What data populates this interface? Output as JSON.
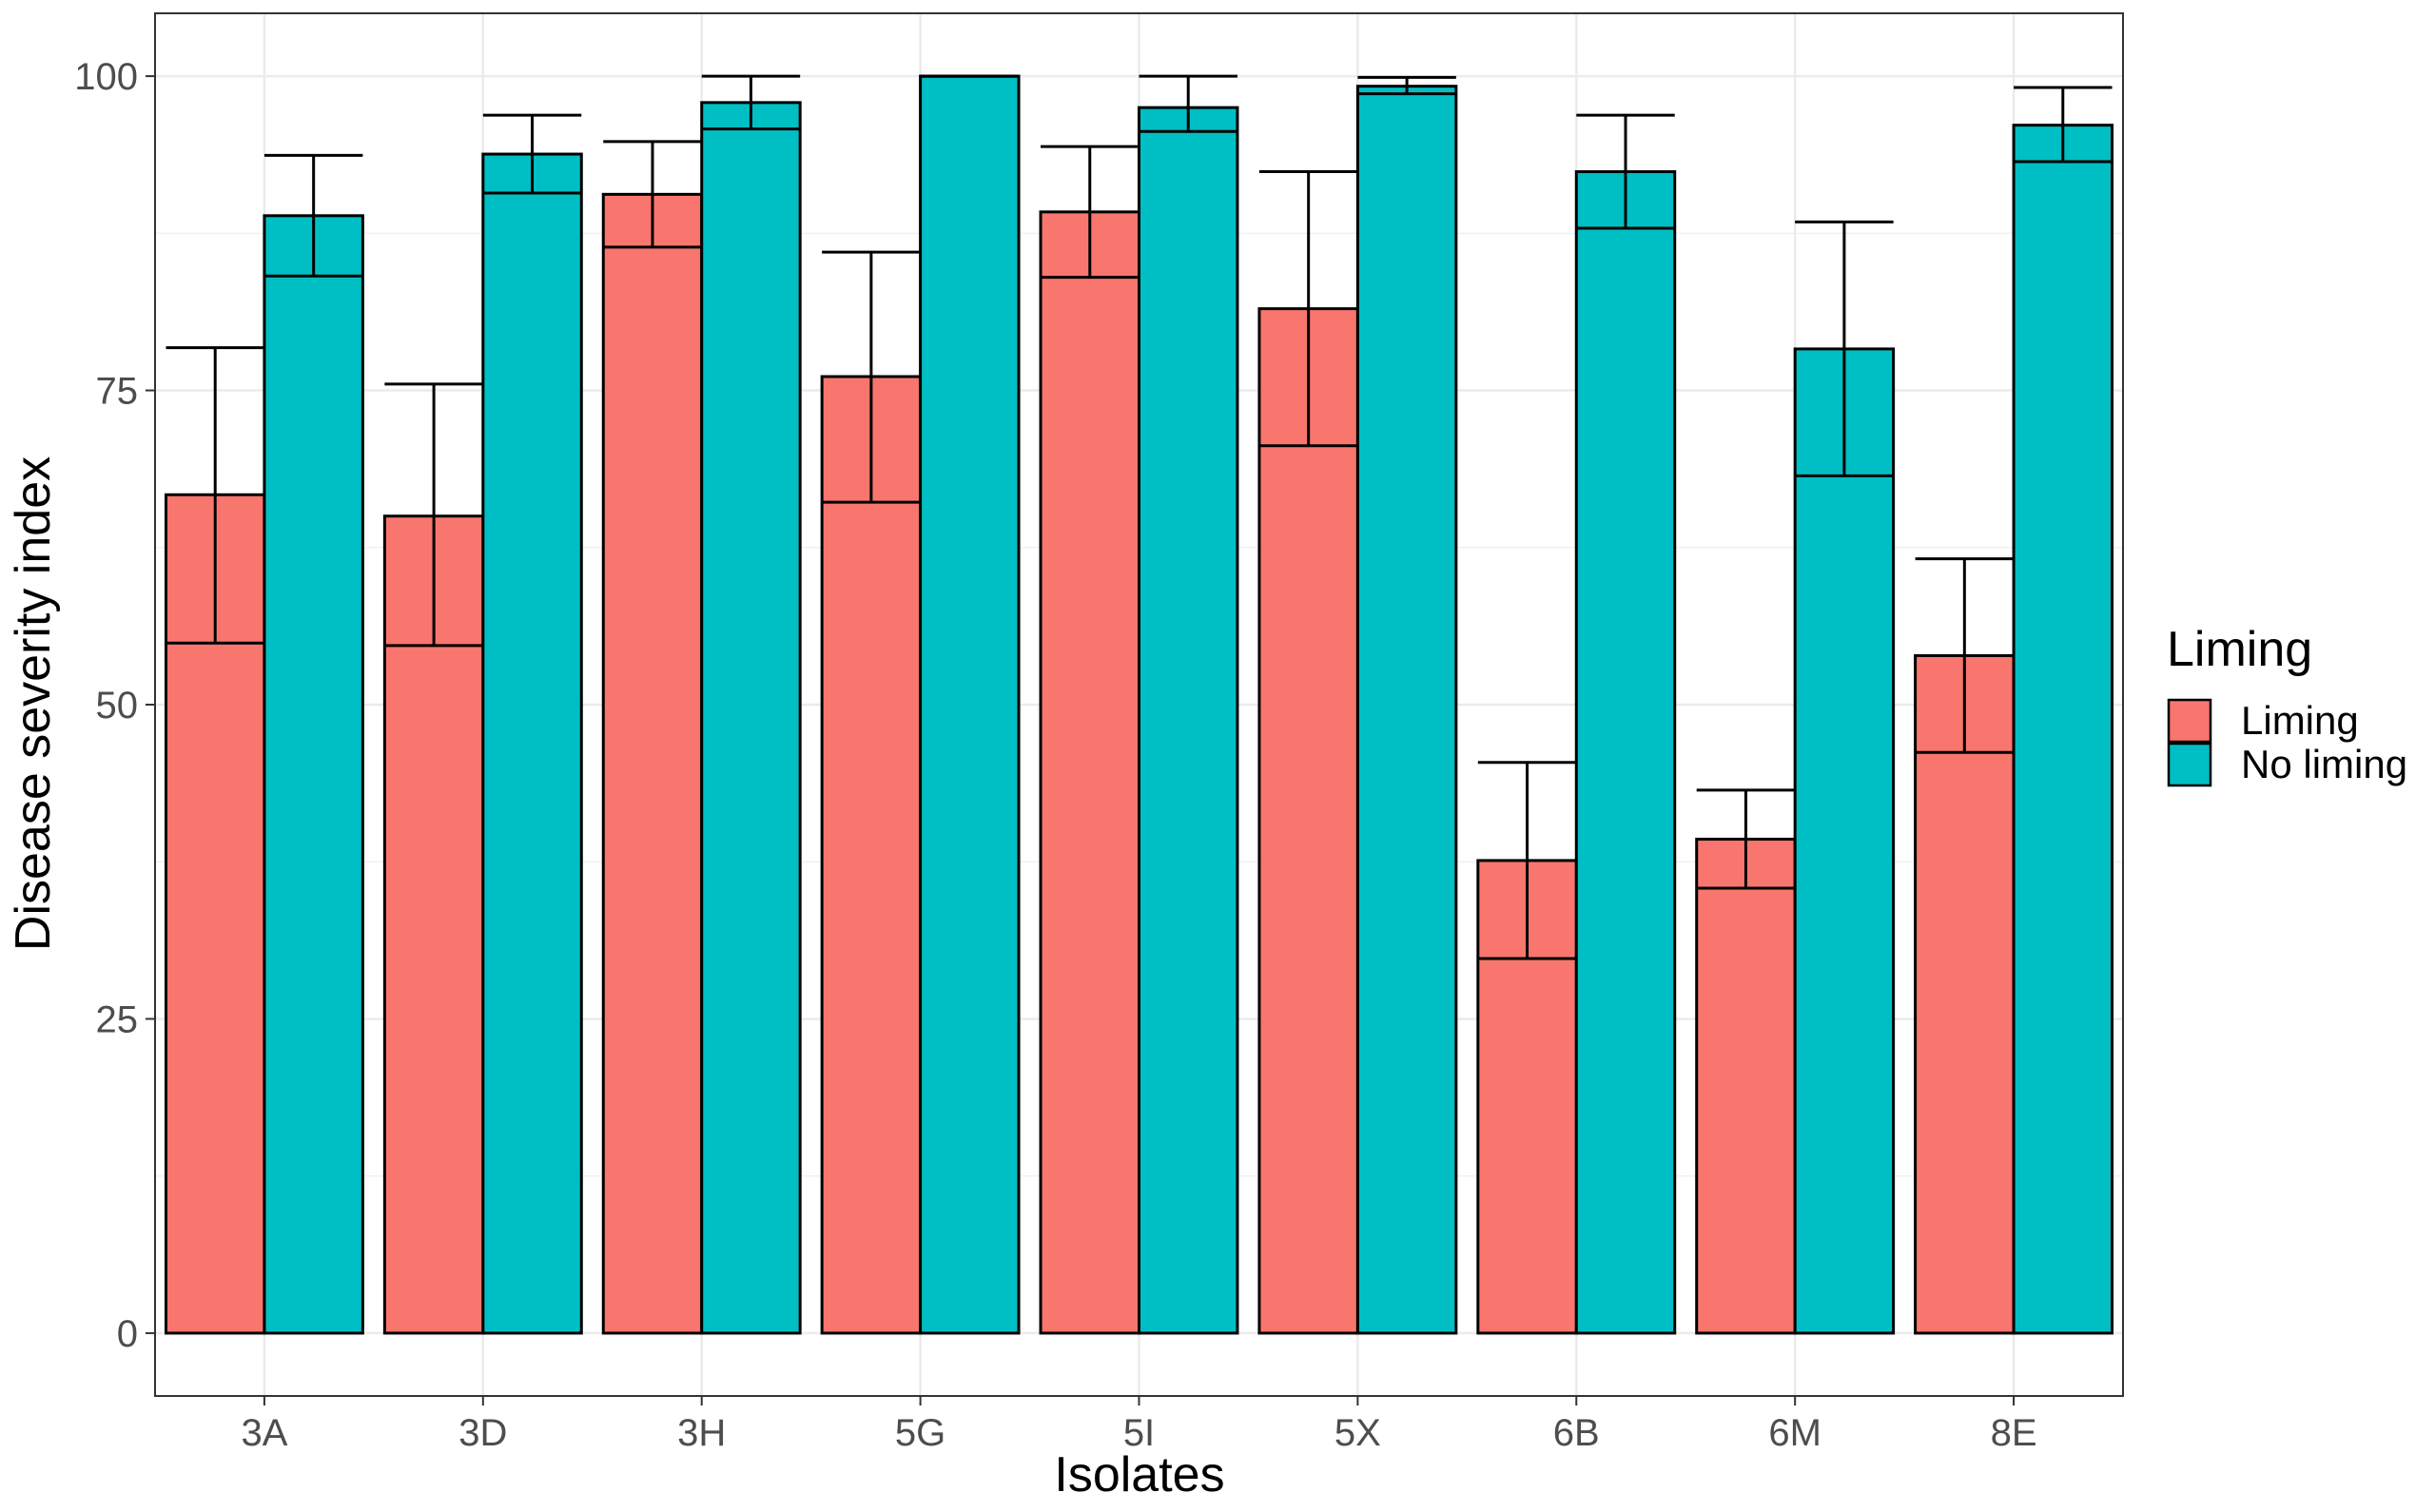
{
  "chart_data": {
    "type": "bar",
    "xlabel": "Isolates",
    "ylabel": "Disease severity index",
    "categories": [
      "3A",
      "3D",
      "3H",
      "5G",
      "5I",
      "5X",
      "6B",
      "6M",
      "8E"
    ],
    "ylim": [
      -5,
      105
    ],
    "yticks": [
      0,
      25,
      50,
      75,
      100
    ],
    "grid": true,
    "legend": {
      "title": "Liming",
      "position": "right"
    },
    "series": [
      {
        "name": "Liming",
        "color": "#F8766D",
        "values": [
          66.7,
          65.0,
          90.6,
          76.1,
          89.2,
          81.5,
          37.6,
          39.3,
          53.9
        ],
        "error_low": [
          54.9,
          54.7,
          86.4,
          66.1,
          84.0,
          70.6,
          29.8,
          35.4,
          46.2
        ],
        "error_high": [
          78.4,
          75.5,
          94.8,
          86.0,
          94.4,
          92.4,
          45.4,
          43.2,
          61.6
        ]
      },
      {
        "name": "No liming",
        "color": "#00BFC4",
        "values": [
          88.9,
          93.8,
          97.9,
          100,
          97.5,
          99.2,
          92.4,
          78.3,
          96.1
        ],
        "error_low": [
          84.1,
          90.7,
          95.8,
          100,
          95.6,
          98.6,
          87.9,
          68.2,
          93.2
        ],
        "error_high": [
          93.7,
          96.9,
          100,
          100,
          100,
          99.9,
          96.9,
          88.4,
          99.1
        ]
      }
    ]
  }
}
